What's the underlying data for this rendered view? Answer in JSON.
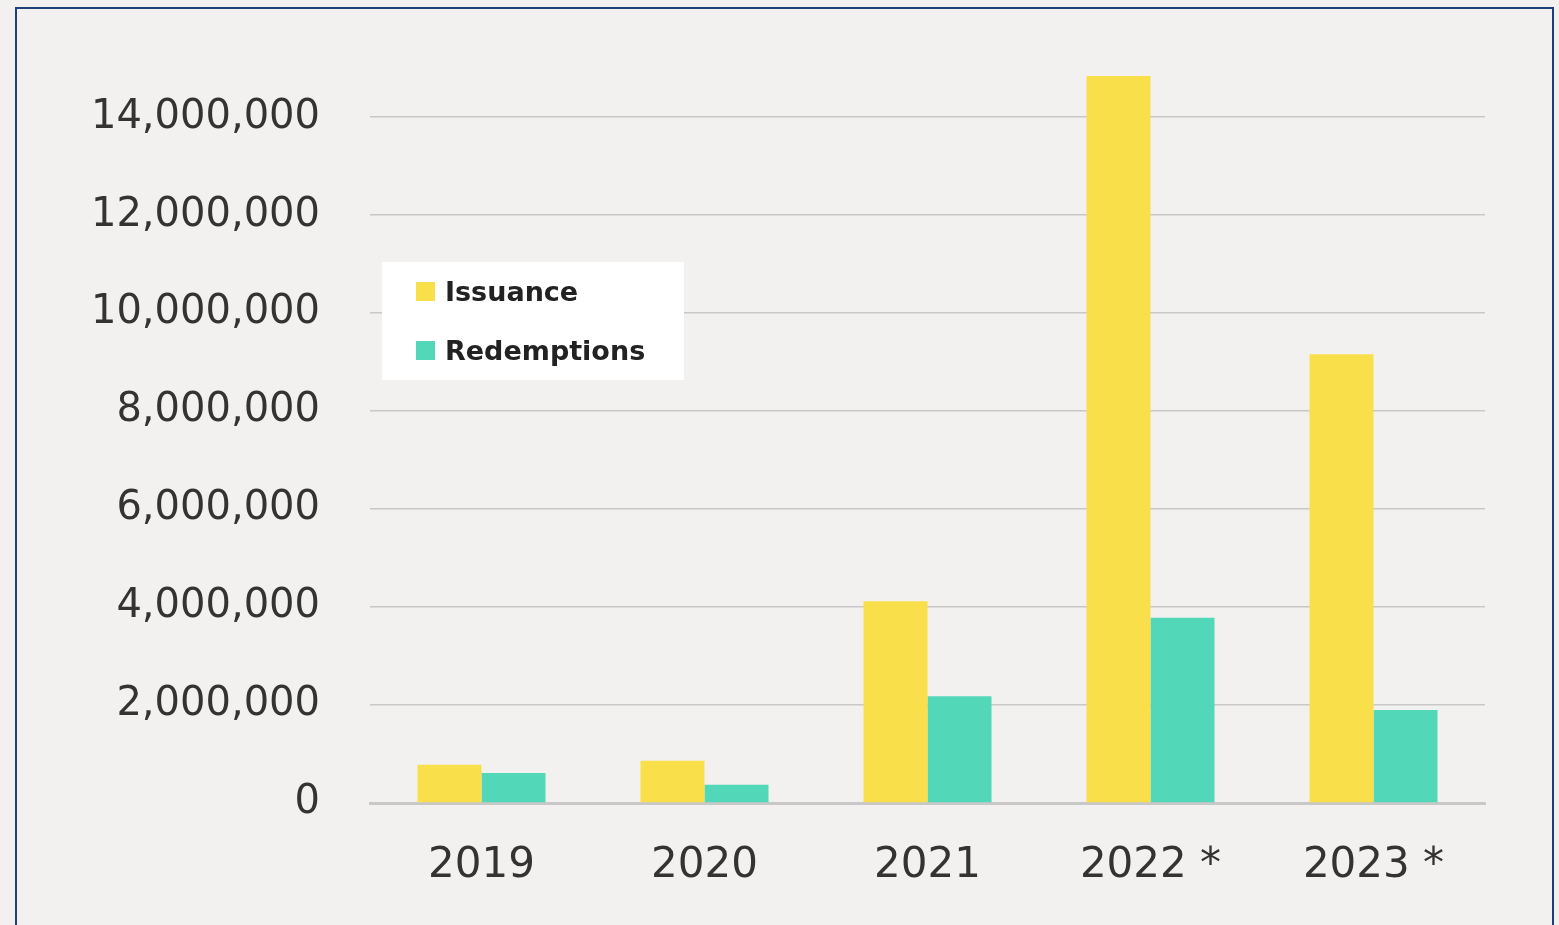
{
  "chart_data": {
    "type": "bar",
    "categories": [
      "2019",
      "2020",
      "2021",
      "2022 *",
      "2023 *"
    ],
    "series": [
      {
        "name": "Issuance",
        "color": "#f9df4a",
        "values": [
          780000,
          860000,
          4120000,
          14840000,
          9160000
        ]
      },
      {
        "name": "Redemptions",
        "color": "#52d8b8",
        "values": [
          610000,
          370000,
          2180000,
          3780000,
          1900000
        ]
      }
    ],
    "ylim": [
      0,
      14840000
    ],
    "yticks": [
      {
        "value": 0,
        "label": "0"
      },
      {
        "value": 2000000,
        "label": "2,000,000"
      },
      {
        "value": 4000000,
        "label": "4,000,000"
      },
      {
        "value": 6000000,
        "label": "6,000,000"
      },
      {
        "value": 8000000,
        "label": "8,000,000"
      },
      {
        "value": 10000000,
        "label": "10,000,000"
      },
      {
        "value": 12000000,
        "label": "12,000,000"
      },
      {
        "value": 14000000,
        "label": "14,000,000"
      }
    ],
    "grid": "y",
    "legend": "top left"
  }
}
